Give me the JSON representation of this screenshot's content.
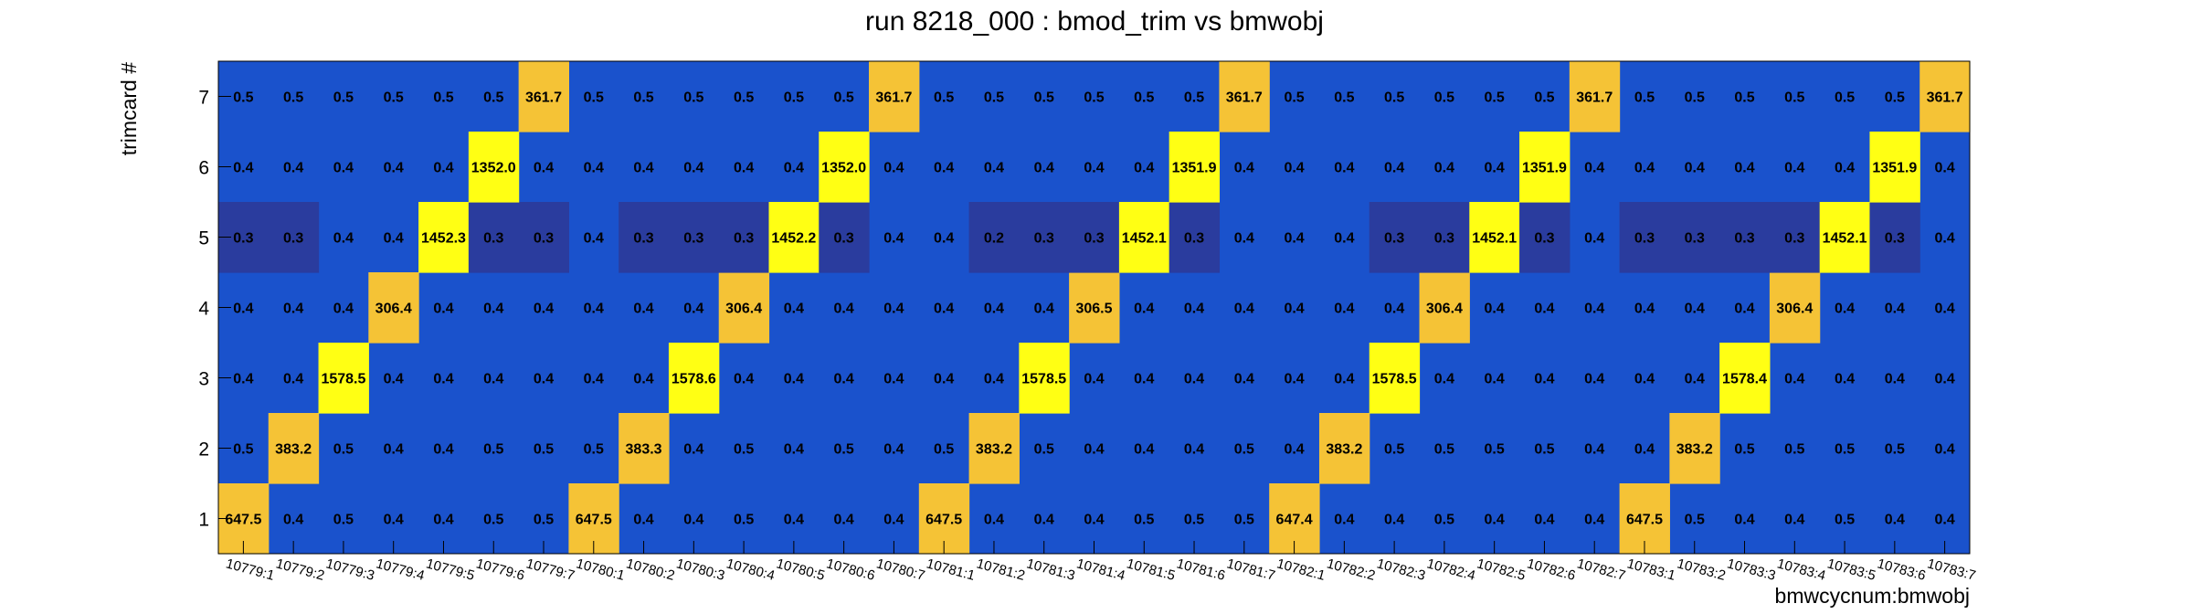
{
  "chart_data": {
    "type": "heatmap",
    "title": "run 8218_000 : bmod_trim vs bmwobj",
    "xlabel": "bmwcycnum:bmwobj",
    "ylabel": "trimcard #",
    "x_categories": [
      "10779:1",
      "10779:2",
      "10779:3",
      "10779:4",
      "10779:5",
      "10779:6",
      "10779:7",
      "10780:1",
      "10780:2",
      "10780:3",
      "10780:4",
      "10780:5",
      "10780:6",
      "10780:7",
      "10781:1",
      "10781:2",
      "10781:3",
      "10781:4",
      "10781:5",
      "10781:6",
      "10781:7",
      "10782:1",
      "10782:2",
      "10782:3",
      "10782:4",
      "10782:5",
      "10782:6",
      "10782:7",
      "10783:1",
      "10783:2",
      "10783:3",
      "10783:4",
      "10783:5",
      "10783:6",
      "10783:7"
    ],
    "y_categories": [
      "1",
      "2",
      "3",
      "4",
      "5",
      "6",
      "7"
    ],
    "colors": {
      "background": "#1a52cc",
      "dark": "#2a3c9e",
      "yellow": "#ffff14",
      "orange": "#f5c336",
      "plot_border": "#000000"
    },
    "rows": [
      {
        "trimcard": "1",
        "values": [
          647.5,
          0.4,
          0.5,
          0.4,
          0.4,
          0.5,
          0.5,
          647.5,
          0.4,
          0.4,
          0.5,
          0.4,
          0.4,
          0.4,
          647.5,
          0.4,
          0.4,
          0.4,
          0.5,
          0.5,
          0.5,
          647.4,
          0.4,
          0.4,
          0.5,
          0.4,
          0.4,
          0.4,
          647.5,
          0.5,
          0.4,
          0.4,
          0.5,
          0.4,
          0.4
        ]
      },
      {
        "trimcard": "2",
        "values": [
          0.5,
          383.2,
          0.5,
          0.4,
          0.4,
          0.5,
          0.5,
          0.5,
          383.3,
          0.4,
          0.5,
          0.4,
          0.5,
          0.4,
          0.5,
          383.2,
          0.5,
          0.4,
          0.4,
          0.4,
          0.5,
          0.4,
          383.2,
          0.5,
          0.5,
          0.5,
          0.5,
          0.4,
          0.4,
          383.2,
          0.5,
          0.5,
          0.5,
          0.5,
          0.4
        ]
      },
      {
        "trimcard": "3",
        "values": [
          0.4,
          0.4,
          1578.5,
          0.4,
          0.4,
          0.4,
          0.4,
          0.4,
          0.4,
          1578.6,
          0.4,
          0.4,
          0.4,
          0.4,
          0.4,
          0.4,
          1578.5,
          0.4,
          0.4,
          0.4,
          0.4,
          0.4,
          0.4,
          1578.5,
          0.4,
          0.4,
          0.4,
          0.4,
          0.4,
          0.4,
          1578.4,
          0.4,
          0.4,
          0.4,
          0.4
        ]
      },
      {
        "trimcard": "4",
        "values": [
          0.4,
          0.4,
          0.4,
          306.4,
          0.4,
          0.4,
          0.4,
          0.4,
          0.4,
          0.4,
          306.4,
          0.4,
          0.4,
          0.4,
          0.4,
          0.4,
          0.4,
          306.5,
          0.4,
          0.4,
          0.4,
          0.4,
          0.4,
          0.4,
          306.4,
          0.4,
          0.4,
          0.4,
          0.4,
          0.4,
          0.4,
          306.4,
          0.4,
          0.4,
          0.4
        ]
      },
      {
        "trimcard": "5",
        "values": [
          0.3,
          0.3,
          0.4,
          0.4,
          1452.3,
          0.3,
          0.3,
          0.4,
          0.3,
          0.3,
          0.3,
          1452.2,
          0.3,
          0.4,
          0.4,
          0.2,
          0.3,
          0.3,
          1452.1,
          0.3,
          0.4,
          0.4,
          0.4,
          0.3,
          0.3,
          1452.1,
          0.3,
          0.4,
          0.3,
          0.3,
          0.3,
          0.3,
          1452.1,
          0.3,
          0.4
        ]
      },
      {
        "trimcard": "6",
        "values": [
          0.4,
          0.4,
          0.4,
          0.4,
          0.4,
          1352.0,
          0.4,
          0.4,
          0.4,
          0.4,
          0.4,
          0.4,
          1352.0,
          0.4,
          0.4,
          0.4,
          0.4,
          0.4,
          0.4,
          1351.9,
          0.4,
          0.4,
          0.4,
          0.4,
          0.4,
          0.4,
          1351.9,
          0.4,
          0.4,
          0.4,
          0.4,
          0.4,
          0.4,
          1351.9,
          0.4
        ]
      },
      {
        "trimcard": "7",
        "values": [
          0.5,
          0.5,
          0.5,
          0.5,
          0.5,
          0.5,
          361.7,
          0.5,
          0.5,
          0.5,
          0.5,
          0.5,
          0.5,
          361.7,
          0.5,
          0.5,
          0.5,
          0.5,
          0.5,
          0.5,
          361.7,
          0.5,
          0.5,
          0.5,
          0.5,
          0.5,
          0.5,
          361.7,
          0.5,
          0.5,
          0.5,
          0.5,
          0.5,
          0.5,
          361.7
        ]
      }
    ],
    "grid": false,
    "legend": "none"
  }
}
